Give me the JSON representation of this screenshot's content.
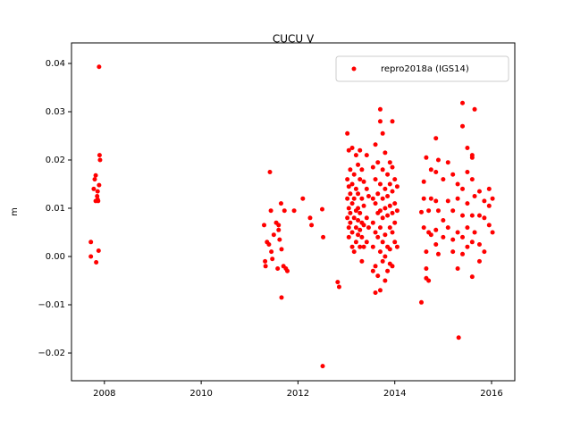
{
  "chart_data": {
    "type": "scatter",
    "title": "CUCU V",
    "y_label": "m",
    "xlim": [
      2007.32,
      2016.48
    ],
    "xticks": [
      2008,
      2010,
      2012,
      2014,
      2016
    ],
    "ylim": [
      -0.02574,
      0.04426
    ],
    "yticks": [
      {
        "value": -0.02,
        "label": "−0.02"
      },
      {
        "value": -0.01,
        "label": "−0.01"
      },
      {
        "value": 0,
        "label": "0.00"
      },
      0.01,
      0.02,
      0.03,
      0.04
    ],
    "legend": "upper right",
    "series": [
      {
        "name": "repro2018a (IGS14)",
        "color": "#ff0000",
        "x": [
          2007.72,
          2007.72,
          2007.78,
          2007.8,
          2007.82,
          2007.83,
          2007.85,
          2007.86,
          2007.87,
          2007.88,
          2007.89,
          2007.9,
          2007.91,
          2007.89,
          2007.82,
          2007.86,
          2011.3,
          2011.32,
          2011.33,
          2011.36,
          2011.4,
          2011.42,
          2011.44,
          2011.45,
          2011.47,
          2011.5,
          2011.55,
          2011.58,
          2011.6,
          2011.62,
          2011.65,
          2011.66,
          2011.7,
          2011.72,
          2011.75,
          2011.78,
          2011.6,
          2011.66,
          2011.92,
          2012.1,
          2012.25,
          2012.28,
          2012.5,
          2012.52,
          2012.51,
          2012.82,
          2012.85,
          2013.02,
          2013.02,
          2013.02,
          2013.02,
          2013.05,
          2013.05,
          2013.05,
          2013.05,
          2013.05,
          2013.08,
          2013.08,
          2013.08,
          2013.08,
          2013.12,
          2013.12,
          2013.12,
          2013.12,
          2013.12,
          2013.16,
          2013.16,
          2013.16,
          2013.16,
          2013.2,
          2013.2,
          2013.2,
          2013.2,
          2013.2,
          2013.24,
          2013.24,
          2013.24,
          2013.24,
          2013.24,
          2013.28,
          2013.28,
          2013.28,
          2013.28,
          2013.28,
          2013.32,
          2013.32,
          2013.32,
          2013.32,
          2013.32,
          2013.36,
          2013.36,
          2013.36,
          2013.36,
          2013.42,
          2013.42,
          2013.42,
          2013.42,
          2013.46,
          2013.46,
          2013.55,
          2013.55,
          2013.55,
          2013.55,
          2013.55,
          2013.6,
          2013.6,
          2013.6,
          2013.6,
          2013.6,
          2013.6,
          2013.65,
          2013.65,
          2013.65,
          2013.65,
          2013.65,
          2013.7,
          2013.7,
          2013.7,
          2013.7,
          2013.7,
          2013.7,
          2013.7,
          2013.75,
          2013.75,
          2013.75,
          2013.75,
          2013.75,
          2013.75,
          2013.8,
          2013.8,
          2013.8,
          2013.8,
          2013.8,
          2013.8,
          2013.85,
          2013.85,
          2013.85,
          2013.85,
          2013.85,
          2013.9,
          2013.9,
          2013.9,
          2013.9,
          2013.9,
          2013.9,
          2013.95,
          2013.95,
          2013.95,
          2013.95,
          2013.95,
          2013.95,
          2014.0,
          2014.0,
          2014.0,
          2014.0,
          2014.05,
          2014.05,
          2014.05,
          2014.55,
          2014.55,
          2014.6,
          2014.6,
          2014.6,
          2014.65,
          2014.65,
          2014.65,
          2014.65,
          2014.7,
          2014.7,
          2014.7,
          2014.75,
          2014.75,
          2014.75,
          2014.85,
          2014.85,
          2014.85,
          2014.85,
          2014.85,
          2014.9,
          2014.9,
          2014.9,
          2015.0,
          2015.0,
          2015.0,
          2015.1,
          2015.1,
          2015.1,
          2015.2,
          2015.2,
          2015.2,
          2015.2,
          2015.3,
          2015.3,
          2015.3,
          2015.3,
          2015.32,
          2015.4,
          2015.4,
          2015.4,
          2015.4,
          2015.4,
          2015.4,
          2015.5,
          2015.5,
          2015.5,
          2015.5,
          2015.5,
          2015.6,
          2015.6,
          2015.6,
          2015.6,
          2015.6,
          2015.6,
          2015.65,
          2015.65,
          2015.65,
          2015.75,
          2015.75,
          2015.75,
          2015.75,
          2015.85,
          2015.85,
          2015.85,
          2015.95,
          2015.95,
          2015.95,
          2016.02,
          2016.02
        ],
        "values": [
          0.003,
          0.0,
          0.014,
          0.016,
          0.0115,
          -0.0012,
          0.0125,
          0.0135,
          0.0115,
          0.0012,
          0.0148,
          0.021,
          0.02,
          0.0393,
          0.0168,
          0.0118,
          0.0065,
          -0.001,
          -0.002,
          0.003,
          0.0025,
          0.0175,
          0.0095,
          0.001,
          -0.0005,
          0.0045,
          0.007,
          -0.0025,
          0.0055,
          0.0035,
          0.011,
          -0.0085,
          -0.002,
          0.0095,
          -0.0025,
          -0.003,
          0.0065,
          0.0015,
          0.0095,
          0.012,
          0.008,
          0.0065,
          0.0098,
          0.004,
          -0.0227,
          -0.0053,
          -0.0063,
          0.0255,
          0.016,
          0.012,
          0.008,
          0.022,
          0.0145,
          0.01,
          0.006,
          0.004,
          0.018,
          0.013,
          0.009,
          0.007,
          0.0225,
          0.015,
          0.011,
          0.005,
          0.002,
          0.017,
          0.012,
          0.008,
          0.001,
          0.021,
          0.014,
          0.0095,
          0.006,
          0.003,
          0.019,
          0.013,
          0.01,
          0.0075,
          0.0045,
          0.022,
          0.016,
          0.009,
          0.0055,
          0.002,
          0.018,
          0.012,
          0.007,
          0.004,
          -0.001,
          0.0155,
          0.0105,
          0.0065,
          0.002,
          0.021,
          0.014,
          0.008,
          0.003,
          0.0125,
          0.006,
          0.0185,
          0.012,
          0.007,
          0.002,
          -0.003,
          0.0232,
          0.016,
          0.011,
          0.005,
          -0.002,
          -0.0075,
          0.0195,
          0.013,
          0.009,
          0.004,
          -0.004,
          0.0305,
          0.028,
          0.015,
          0.0095,
          0.006,
          0.001,
          -0.007,
          0.0255,
          0.018,
          0.012,
          0.008,
          0.003,
          -0.001,
          0.0215,
          0.014,
          0.01,
          0.0045,
          0.0,
          -0.005,
          0.017,
          0.0125,
          0.0085,
          0.002,
          -0.003,
          0.0195,
          0.015,
          0.0105,
          0.006,
          0.0015,
          -0.0015,
          0.028,
          0.0185,
          0.0135,
          0.009,
          0.005,
          -0.002,
          0.016,
          0.011,
          0.007,
          0.003,
          0.0145,
          0.0095,
          0.002,
          -0.0095,
          0.0092,
          0.0155,
          0.012,
          0.006,
          0.0205,
          0.001,
          -0.0025,
          -0.0045,
          0.005,
          -0.005,
          0.0095,
          0.018,
          0.012,
          0.0045,
          0.0245,
          0.0175,
          0.0115,
          0.0055,
          0.0025,
          0.02,
          0.0095,
          0.0005,
          0.016,
          0.0075,
          0.004,
          0.0195,
          0.0115,
          0.006,
          0.017,
          0.0095,
          0.0035,
          0.001,
          0.015,
          0.012,
          0.005,
          -0.0025,
          -0.0168,
          0.0318,
          0.027,
          0.014,
          0.0085,
          0.004,
          0.0005,
          0.0225,
          0.0175,
          0.011,
          0.006,
          0.002,
          0.021,
          0.0205,
          0.016,
          0.0085,
          0.003,
          -0.0042,
          0.0305,
          0.0125,
          0.005,
          0.0135,
          0.0085,
          0.0025,
          -0.001,
          0.0115,
          0.008,
          0.001,
          0.014,
          0.0105,
          0.0065,
          0.012,
          0.005
        ]
      }
    ]
  }
}
